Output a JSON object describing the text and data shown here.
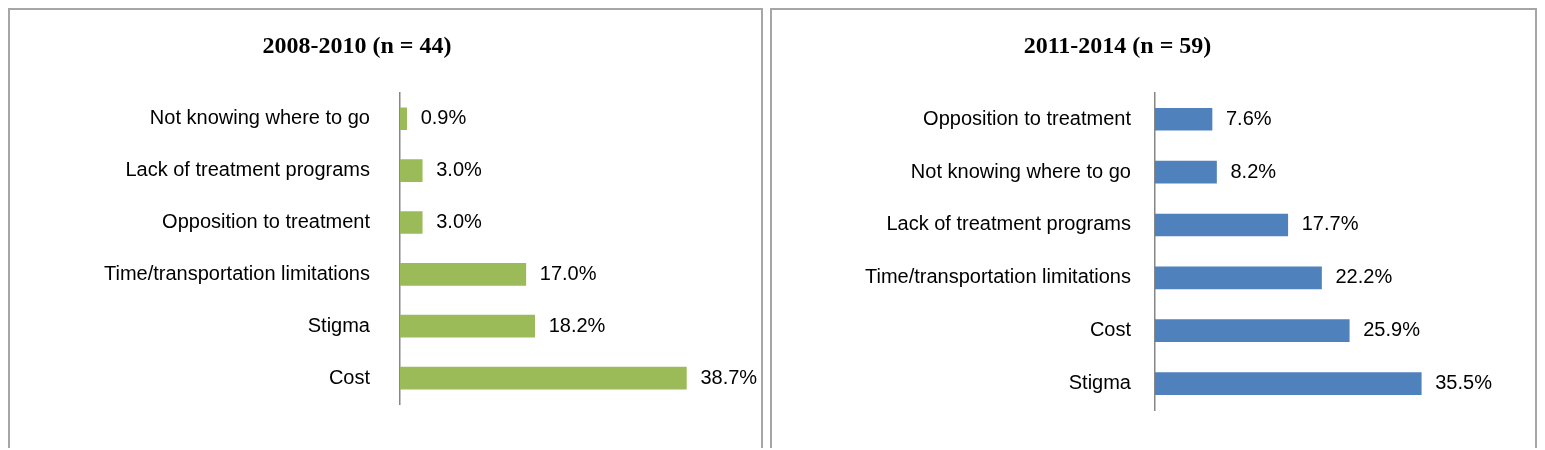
{
  "chart_data": [
    {
      "type": "bar",
      "orientation": "horizontal",
      "title": "2008-2010 (n = 44)",
      "categories": [
        "Not knowing where to go",
        "Lack of treatment programs",
        "Opposition to treatment",
        "Time/transportation limitations",
        "Stigma",
        "Cost"
      ],
      "values": [
        0.9,
        3.0,
        3.0,
        17.0,
        18.2,
        38.7
      ],
      "value_labels": [
        "0.9%",
        "3.0%",
        "3.0%",
        "17.0%",
        "18.2%",
        "38.7%"
      ],
      "color": "#9bbb59",
      "tick_labels": "y"
    },
    {
      "type": "bar",
      "orientation": "horizontal",
      "title": "2011-2014 (n = 59)",
      "categories": [
        "Opposition to treatment",
        "Not knowing where to go",
        "Lack of treatment programs",
        "Time/transportation limitations",
        "Cost",
        "Stigma"
      ],
      "values": [
        7.6,
        8.2,
        17.7,
        22.2,
        25.9,
        35.5
      ],
      "value_labels": [
        "7.6%",
        "8.2%",
        "17.7%",
        "22.2%",
        "25.9%",
        "35.5%"
      ],
      "color": "#4f81bd",
      "tick_labels": "y"
    }
  ]
}
